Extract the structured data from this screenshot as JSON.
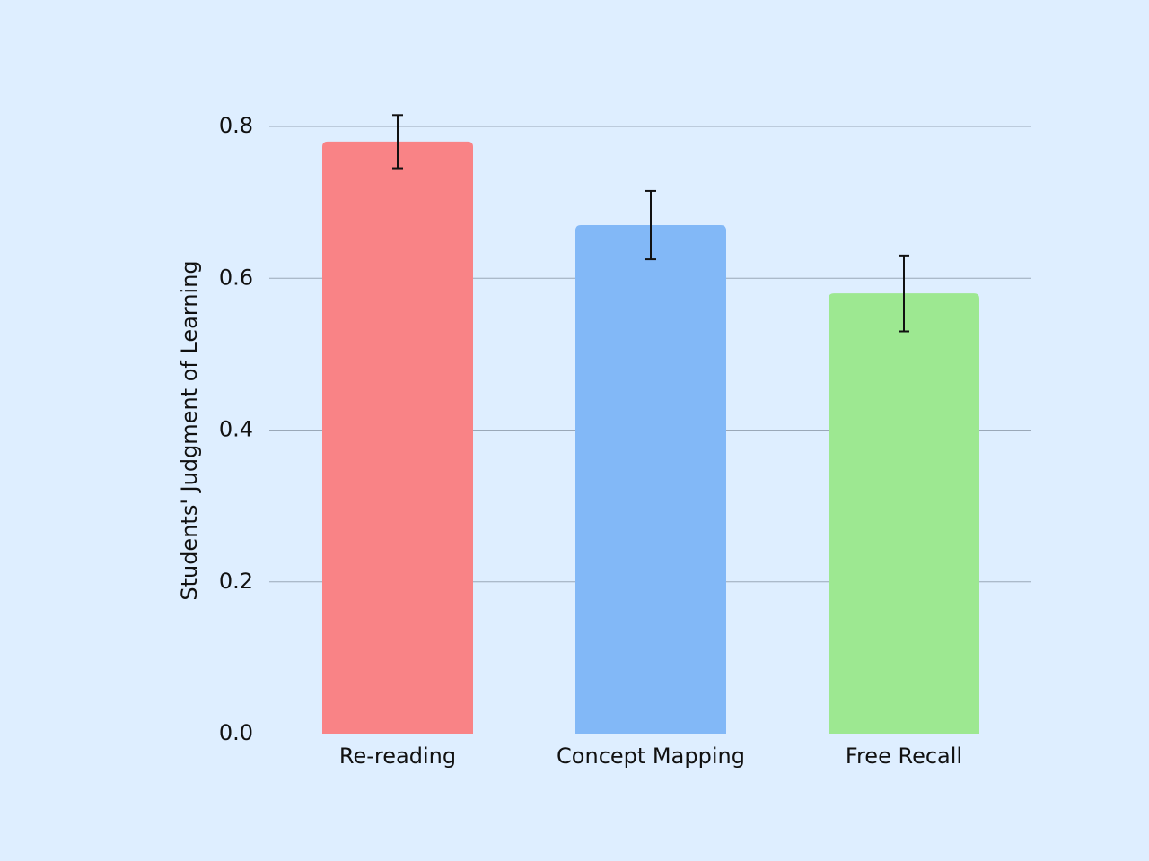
{
  "chart_data": {
    "type": "bar",
    "y_label": "Students' Judgment of Learning",
    "categories": [
      "Re-reading",
      "Concept Mapping",
      "Free Recall"
    ],
    "values": [
      0.78,
      0.67,
      0.58
    ],
    "errors": [
      0.035,
      0.045,
      0.05
    ],
    "colors": [
      "#f98386",
      "#82b8f7",
      "#9de891"
    ],
    "ylim": [
      0,
      0.8
    ],
    "yticks": [
      {
        "value": 0,
        "label": "0.0"
      },
      0.2,
      0.4,
      0.6,
      0.8
    ],
    "grid": true
  }
}
